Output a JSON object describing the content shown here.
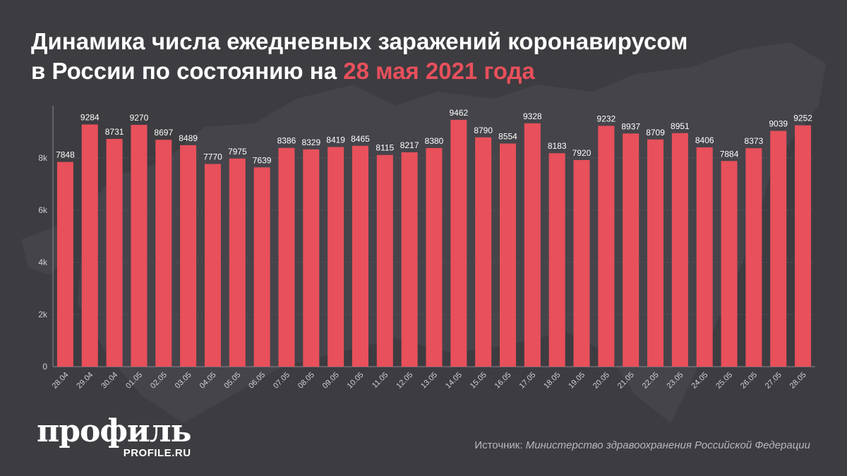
{
  "title": {
    "line1": "Динамика числа ежедневных заражений коронавирусом",
    "line2_prefix": "в России по состоянию на ",
    "line2_accent": "28 мая 2021 года"
  },
  "colors": {
    "background": "#3d3c41",
    "bar": "#e8505b",
    "accent": "#e8505b",
    "text": "#ffffff"
  },
  "chart_data": {
    "type": "bar",
    "categories": [
      "28.04",
      "29.04",
      "30.04",
      "01.05",
      "02.05",
      "03.05",
      "04.05",
      "05.05",
      "06.05",
      "07.05",
      "08.05",
      "09.05",
      "10.05",
      "11.05",
      "12.05",
      "13.05",
      "14.05",
      "15.05",
      "16.05",
      "17.05",
      "18.05",
      "19.05",
      "20.05",
      "21.05",
      "22.05",
      "23.05",
      "24.05",
      "25.05",
      "26.05",
      "27.05",
      "28.05"
    ],
    "values": [
      7848,
      9284,
      8731,
      9270,
      8697,
      8489,
      7770,
      7975,
      7639,
      8386,
      8329,
      8419,
      8465,
      8115,
      8217,
      8380,
      9462,
      8790,
      8554,
      9328,
      8183,
      7920,
      9232,
      8937,
      8709,
      8951,
      8406,
      7884,
      8373,
      9039,
      9252
    ],
    "ylim": [
      0,
      10000
    ],
    "yticks": [
      0,
      2000,
      4000,
      6000,
      8000
    ],
    "ytick_labels": [
      "0",
      "2k",
      "4k",
      "6k",
      "8k"
    ],
    "grid": true,
    "xlabel": "",
    "ylabel": ""
  },
  "brand": {
    "logo": "профиль",
    "site": "PROFILE.RU"
  },
  "source": {
    "label": "Источник: ",
    "text": "Министерство здравоохранения Российской Федерации"
  }
}
